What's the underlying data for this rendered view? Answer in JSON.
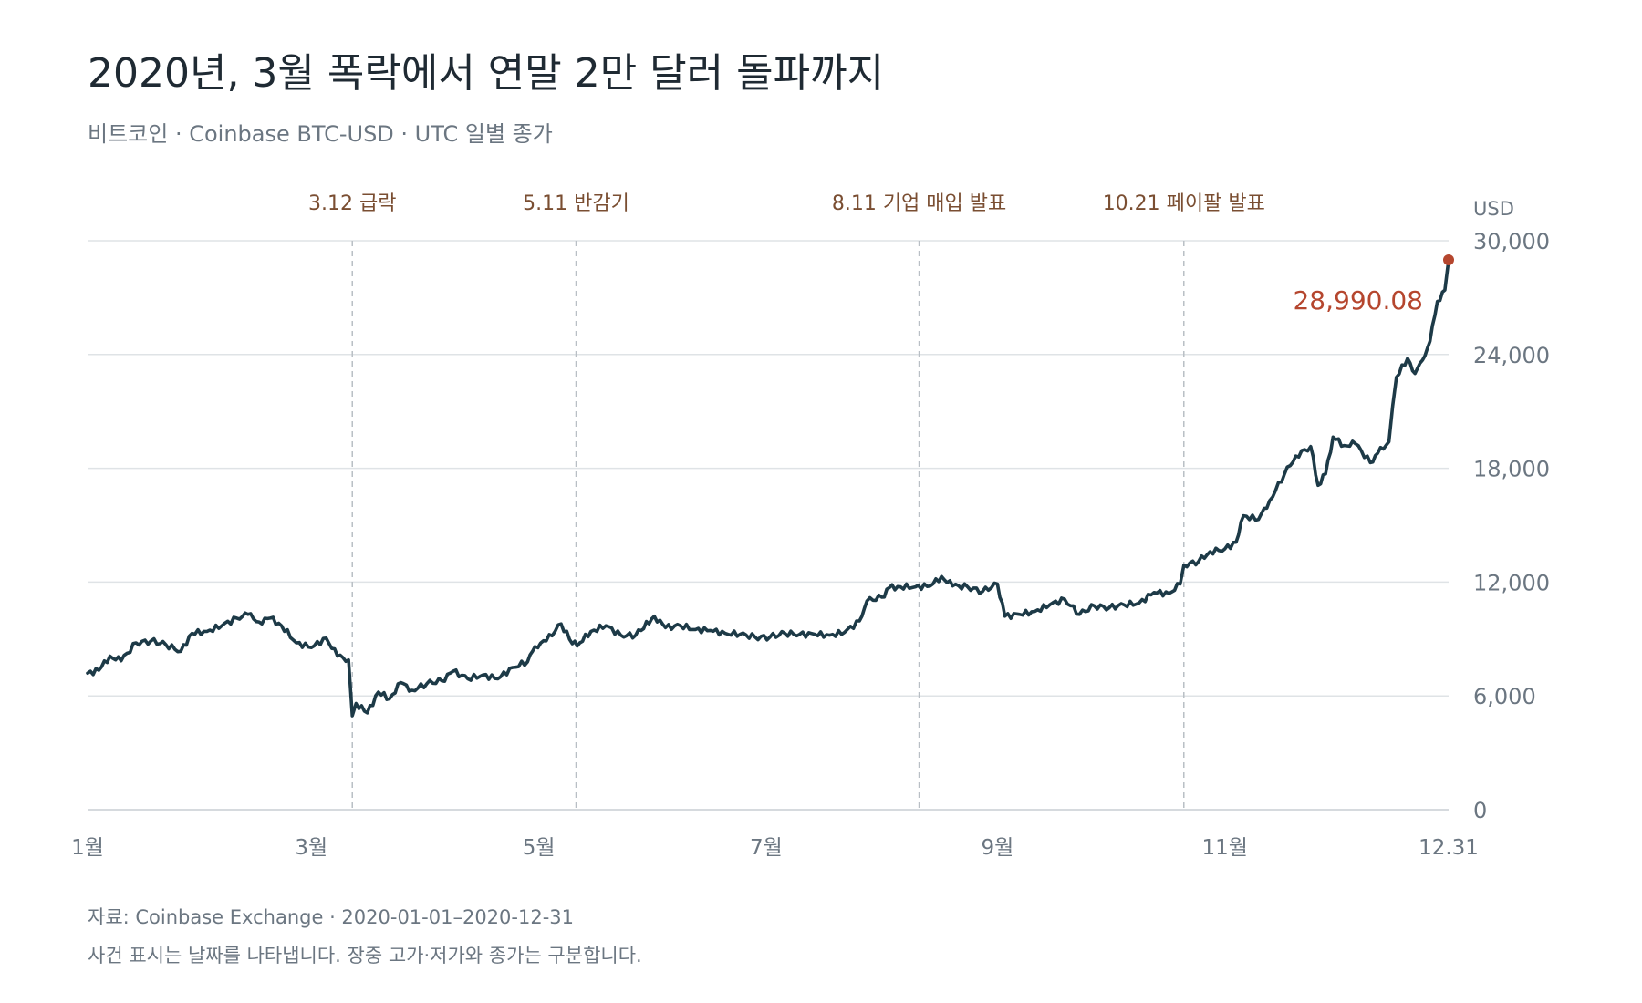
{
  "header": {
    "title": "2020년, 3월 폭락에서 연말 2만 달러 돌파까지",
    "subtitle": "비트코인 · Coinbase BTC-USD · UTC 일별 종가"
  },
  "footer": {
    "source": "자료: Coinbase Exchange · 2020-01-01–2020-12-31",
    "note": "사건 표시는 날짜를 나타냅니다. 장중 고가·저가와 종가는 구분합니다."
  },
  "colors": {
    "line": "#1d3a47",
    "accent": "#b5462e",
    "event_label": "#7a4e32",
    "grid": "#dfe3e6",
    "axis_text": "#6b7681",
    "event_line": "#b9bfc5"
  },
  "chart_data": {
    "type": "line",
    "x_type": "date",
    "y_unit": "USD",
    "ylim": [
      0,
      30000
    ],
    "y_ticks": [
      0,
      6000,
      12000,
      18000,
      24000,
      30000
    ],
    "y_tick_labels": [
      "0",
      "6,000",
      "12,000",
      "18,000",
      "24,000",
      "30,000"
    ],
    "x_ticks": [
      {
        "date": "2020-01-01",
        "label": "1월"
      },
      {
        "date": "2020-03-01",
        "label": "3월"
      },
      {
        "date": "2020-05-01",
        "label": "5월"
      },
      {
        "date": "2020-07-01",
        "label": "7월"
      },
      {
        "date": "2020-09-01",
        "label": "9월"
      },
      {
        "date": "2020-11-01",
        "label": "11월"
      },
      {
        "date": "2020-12-31",
        "label": "12.31"
      }
    ],
    "grid": "horizontal",
    "events": [
      {
        "date": "2020-03-12",
        "label": "3.12 급락"
      },
      {
        "date": "2020-05-11",
        "label": "5.11 반감기"
      },
      {
        "date": "2020-08-11",
        "label": "8.11 기업 매입 발표"
      },
      {
        "date": "2020-10-21",
        "label": "10.21 페이팔 발표"
      }
    ],
    "last_point": {
      "date": "2020-12-31",
      "value": 28990.08,
      "label": "28,990.08"
    },
    "series": [
      {
        "points": [
          [
            "2020-01-01",
            7200
          ],
          [
            "2020-01-04",
            7350
          ],
          [
            "2020-01-07",
            8100
          ],
          [
            "2020-01-10",
            7850
          ],
          [
            "2020-01-14",
            8800
          ],
          [
            "2020-01-18",
            8900
          ],
          [
            "2020-01-22",
            8700
          ],
          [
            "2020-01-26",
            8350
          ],
          [
            "2020-01-29",
            9300
          ],
          [
            "2020-02-02",
            9400
          ],
          [
            "2020-02-06",
            9700
          ],
          [
            "2020-02-10",
            10100
          ],
          [
            "2020-02-13",
            10300
          ],
          [
            "2020-02-16",
            9900
          ],
          [
            "2020-02-19",
            10100
          ],
          [
            "2020-02-22",
            9700
          ],
          [
            "2020-02-26",
            8800
          ],
          [
            "2020-03-01",
            8550
          ],
          [
            "2020-03-05",
            9050
          ],
          [
            "2020-03-08",
            8100
          ],
          [
            "2020-03-11",
            7900
          ],
          [
            "2020-03-12",
            4950
          ],
          [
            "2020-03-13",
            5600
          ],
          [
            "2020-03-16",
            5100
          ],
          [
            "2020-03-19",
            6200
          ],
          [
            "2020-03-22",
            5850
          ],
          [
            "2020-03-25",
            6700
          ],
          [
            "2020-03-28",
            6300
          ],
          [
            "2020-04-01",
            6650
          ],
          [
            "2020-04-05",
            6800
          ],
          [
            "2020-04-08",
            7300
          ],
          [
            "2020-04-12",
            6900
          ],
          [
            "2020-04-16",
            7100
          ],
          [
            "2020-04-20",
            6900
          ],
          [
            "2020-04-24",
            7500
          ],
          [
            "2020-04-28",
            7800
          ],
          [
            "2020-04-30",
            8600
          ],
          [
            "2020-05-03",
            8900
          ],
          [
            "2020-05-07",
            9800
          ],
          [
            "2020-05-10",
            8750
          ],
          [
            "2020-05-12",
            8800
          ],
          [
            "2020-05-15",
            9400
          ],
          [
            "2020-05-19",
            9700
          ],
          [
            "2020-05-23",
            9200
          ],
          [
            "2020-05-27",
            9200
          ],
          [
            "2020-06-01",
            10200
          ],
          [
            "2020-06-04",
            9600
          ],
          [
            "2020-06-08",
            9700
          ],
          [
            "2020-06-12",
            9500
          ],
          [
            "2020-06-16",
            9450
          ],
          [
            "2020-06-20",
            9300
          ],
          [
            "2020-06-24",
            9250
          ],
          [
            "2020-06-28",
            9100
          ],
          [
            "2020-07-02",
            9100
          ],
          [
            "2020-07-06",
            9300
          ],
          [
            "2020-07-10",
            9250
          ],
          [
            "2020-07-14",
            9250
          ],
          [
            "2020-07-18",
            9200
          ],
          [
            "2020-07-22",
            9350
          ],
          [
            "2020-07-26",
            9950
          ],
          [
            "2020-07-28",
            11000
          ],
          [
            "2020-08-01",
            11200
          ],
          [
            "2020-08-03",
            11700
          ],
          [
            "2020-08-06",
            11750
          ],
          [
            "2020-08-10",
            11750
          ],
          [
            "2020-08-14",
            11800
          ],
          [
            "2020-08-17",
            12300
          ],
          [
            "2020-08-20",
            11800
          ],
          [
            "2020-08-24",
            11750
          ],
          [
            "2020-08-28",
            11500
          ],
          [
            "2020-09-01",
            11900
          ],
          [
            "2020-09-03",
            10200
          ],
          [
            "2020-09-07",
            10300
          ],
          [
            "2020-09-11",
            10450
          ],
          [
            "2020-09-15",
            10800
          ],
          [
            "2020-09-19",
            11100
          ],
          [
            "2020-09-23",
            10300
          ],
          [
            "2020-09-27",
            10750
          ],
          [
            "2020-10-01",
            10650
          ],
          [
            "2020-10-05",
            10800
          ],
          [
            "2020-10-09",
            10900
          ],
          [
            "2020-10-13",
            11450
          ],
          [
            "2020-10-17",
            11400
          ],
          [
            "2020-10-20",
            11900
          ],
          [
            "2020-10-21",
            12900
          ],
          [
            "2020-10-25",
            13100
          ],
          [
            "2020-10-28",
            13600
          ],
          [
            "2020-11-01",
            13750
          ],
          [
            "2020-11-04",
            14100
          ],
          [
            "2020-11-06",
            15500
          ],
          [
            "2020-11-10",
            15300
          ],
          [
            "2020-11-13",
            16300
          ],
          [
            "2020-11-17",
            17700
          ],
          [
            "2020-11-20",
            18650
          ],
          [
            "2020-11-24",
            19150
          ],
          [
            "2020-11-26",
            17100
          ],
          [
            "2020-11-28",
            17700
          ],
          [
            "2020-11-30",
            19650
          ],
          [
            "2020-12-03",
            19200
          ],
          [
            "2020-12-06",
            19300
          ],
          [
            "2020-12-10",
            18300
          ],
          [
            "2020-12-12",
            18800
          ],
          [
            "2020-12-15",
            19400
          ],
          [
            "2020-12-16",
            21300
          ],
          [
            "2020-12-17",
            22800
          ],
          [
            "2020-12-20",
            23800
          ],
          [
            "2020-12-22",
            23000
          ],
          [
            "2020-12-24",
            23700
          ],
          [
            "2020-12-26",
            24700
          ],
          [
            "2020-12-28",
            26800
          ],
          [
            "2020-12-30",
            27400
          ],
          [
            "2020-12-31",
            28990.08
          ]
        ]
      }
    ]
  }
}
